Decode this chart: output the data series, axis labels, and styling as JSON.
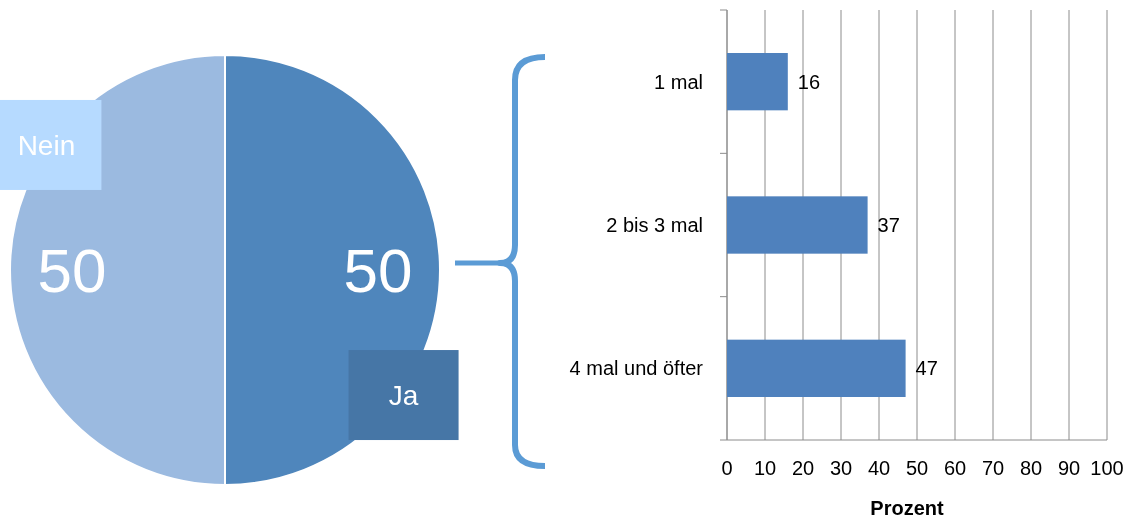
{
  "chart_data": [
    {
      "type": "pie",
      "categories": [
        "Ja",
        "Nein"
      ],
      "values": [
        50,
        50
      ],
      "colors": [
        "#4f86bc",
        "#9bbae0"
      ],
      "data_labels": true
    },
    {
      "type": "bar",
      "orientation": "horizontal",
      "categories": [
        "1 mal",
        "2 bis 3 mal",
        "4 mal und öfter"
      ],
      "values": [
        16,
        37,
        47
      ],
      "color": "#4f81bd",
      "xlim": [
        0,
        100
      ],
      "xticks": [
        0,
        10,
        20,
        30,
        40,
        50,
        60,
        70,
        80,
        90,
        100
      ],
      "grid": "x",
      "data_labels": true,
      "xlabel": "Prozent"
    }
  ]
}
